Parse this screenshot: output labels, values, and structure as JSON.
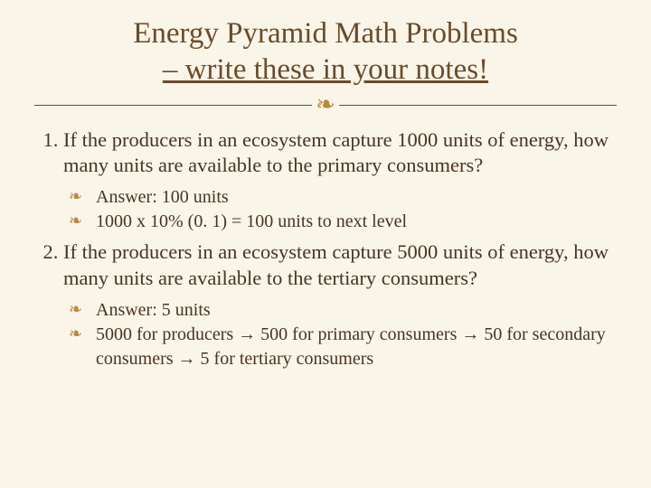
{
  "title_line1": "Energy Pyramid Math Problems",
  "title_line2": "– write these in your notes!",
  "divider_glyph": "❧",
  "colors": {
    "background": "#faf5e9",
    "title_text": "#6b4a2a",
    "body_text": "#473523",
    "accent": "#b8893c",
    "rule": "#6b4a2a"
  },
  "typography": {
    "title_fontsize": 33,
    "question_fontsize": 22.5,
    "sub_fontsize": 20,
    "font_family": "Georgia"
  },
  "questions": [
    {
      "text": "If the producers in an ecosystem capture 1000 units of energy, how many units are available to the primary consumers?",
      "subs": [
        "Answer: 100 units",
        "1000 x 10% (0. 1) = 100 units to next level"
      ]
    },
    {
      "text": "If the producers in an ecosystem capture 5000 units of energy, how many units are available to the tertiary consumers?",
      "subs": [
        "Answer: 5 units",
        "5000 for producers → 500 for primary consumers → 50 for secondary consumers → 5 for tertiary consumers"
      ]
    }
  ]
}
